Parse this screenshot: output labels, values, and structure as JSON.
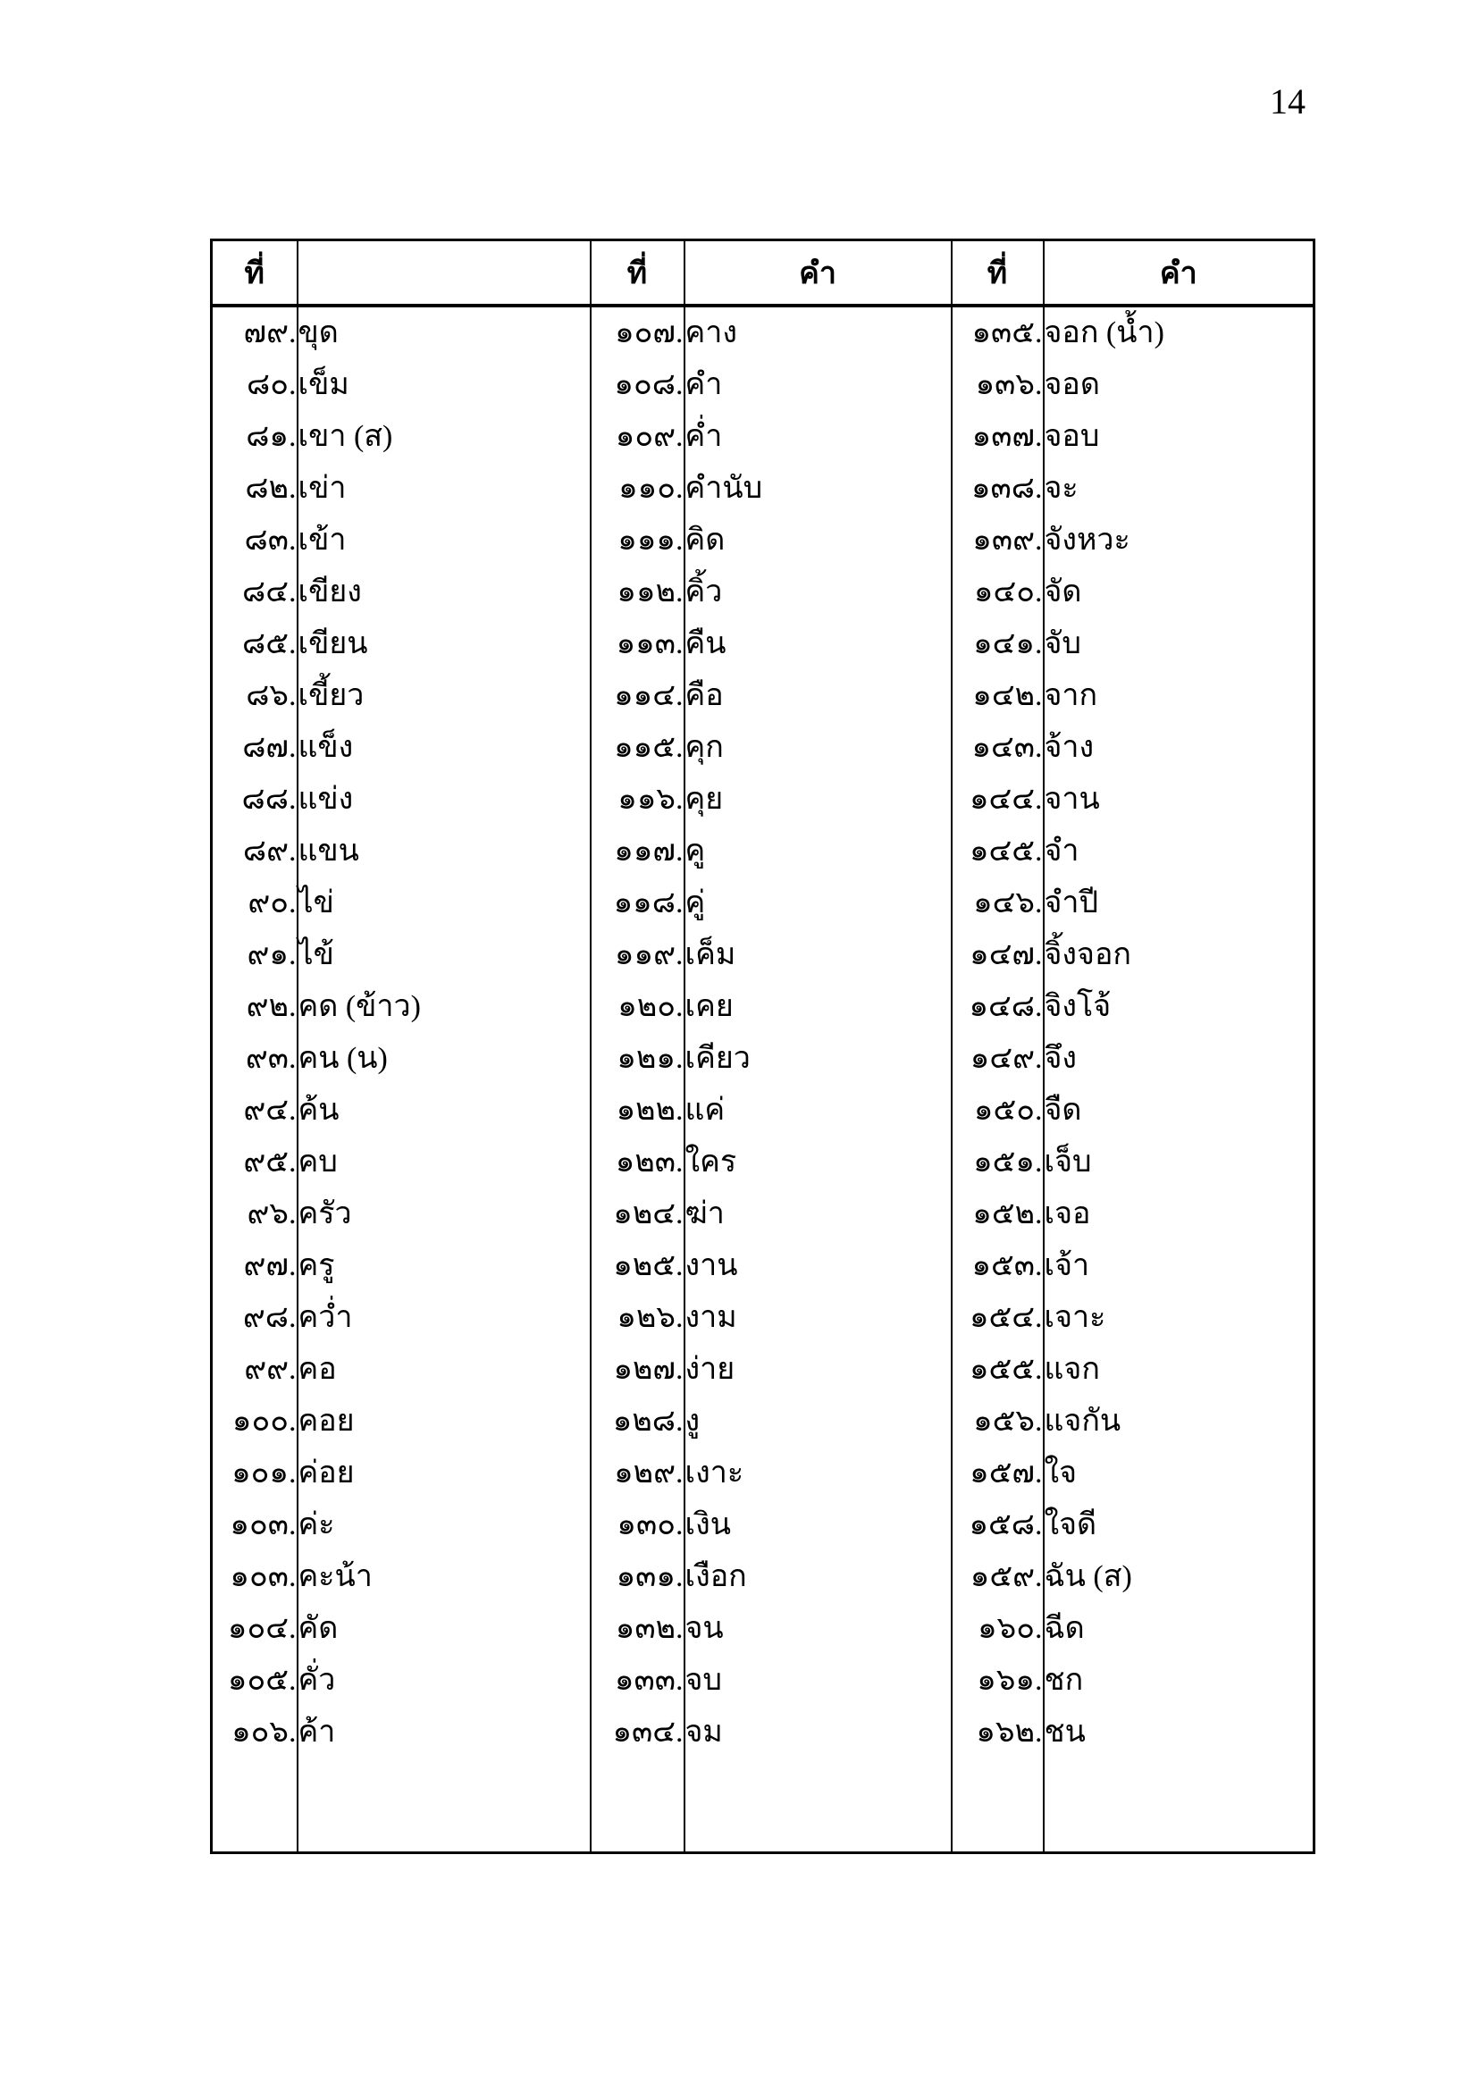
{
  "page": {
    "number": "14"
  },
  "table": {
    "headers": [
      "ที่",
      "",
      "ที่",
      "คำ",
      "ที่",
      "คำ"
    ],
    "rows": [
      [
        "๗๙.",
        "ขุด",
        "๑๐๗.",
        "คาง",
        "๑๓๕.",
        "จอก (น้ำ)"
      ],
      [
        "๘๐.",
        "เข็ม",
        "๑๐๘.",
        "คำ",
        "๑๓๖.",
        "จอด"
      ],
      [
        "๘๑.",
        "เขา (ส)",
        "๑๐๙.",
        "ค่ำ",
        "๑๓๗.",
        "จอบ"
      ],
      [
        "๘๒.",
        "เข่า",
        "๑๑๐.",
        "คำนับ",
        "๑๓๘.",
        "จะ"
      ],
      [
        "๘๓.",
        "เข้า",
        "๑๑๑.",
        "คิด",
        "๑๓๙.",
        "จังหวะ"
      ],
      [
        "๘๔.",
        "เขียง",
        "๑๑๒.",
        "คิ้ว",
        "๑๔๐.",
        "จัด"
      ],
      [
        "๘๕.",
        "เขียน",
        "๑๑๓.",
        "คืน",
        "๑๔๑.",
        "จับ"
      ],
      [
        "๘๖.",
        "เขี้ยว",
        "๑๑๔.",
        "คือ",
        "๑๔๒.",
        "จาก"
      ],
      [
        "๘๗.",
        "แข็ง",
        "๑๑๕.",
        "คุก",
        "๑๔๓.",
        "จ้าง"
      ],
      [
        "๘๘.",
        "แข่ง",
        "๑๑๖.",
        "คุย",
        "๑๔๔.",
        "จาน"
      ],
      [
        "๘๙.",
        "แขน",
        "๑๑๗.",
        "คู",
        "๑๔๕.",
        "จำ"
      ],
      [
        "๙๐.",
        "ไข่",
        "๑๑๘.",
        "คู่",
        "๑๔๖.",
        "จำปี"
      ],
      [
        "๙๑.",
        "ไข้",
        "๑๑๙.",
        "เค็ม",
        "๑๔๗.",
        "จิ้งจอก"
      ],
      [
        "๙๒.",
        "คด (ข้าว)",
        "๑๒๐.",
        "เคย",
        "๑๔๘.",
        "จิงโจ้"
      ],
      [
        "๙๓.",
        "คน (น)",
        "๑๒๑.",
        "เคียว",
        "๑๔๙.",
        "จึง"
      ],
      [
        "๙๔.",
        "ค้น",
        "๑๒๒.",
        "แค่",
        "๑๕๐.",
        "จืด"
      ],
      [
        "๙๕.",
        "คบ",
        "๑๒๓.",
        "ใคร",
        "๑๕๑.",
        "เจ็บ"
      ],
      [
        "๙๖.",
        "ครัว",
        "๑๒๔.",
        "ฆ่า",
        "๑๕๒.",
        "เจอ"
      ],
      [
        "๙๗.",
        "ครู",
        "๑๒๕.",
        "งาน",
        "๑๕๓.",
        "เจ้า"
      ],
      [
        "๙๘.",
        "คว่ำ",
        "๑๒๖.",
        "งาม",
        "๑๕๔.",
        "เจาะ"
      ],
      [
        "๙๙.",
        "คอ",
        "๑๒๗.",
        "ง่าย",
        "๑๕๕.",
        "แจก"
      ],
      [
        "๑๐๐.",
        "คอย",
        "๑๒๘.",
        "งู",
        "๑๕๖.",
        "แจกัน"
      ],
      [
        "๑๐๑.",
        "ค่อย",
        "๑๒๙.",
        "เงาะ",
        "๑๕๗.",
        "ใจ"
      ],
      [
        "๑๐๓.",
        "ค่ะ",
        "๑๓๐.",
        "เงิน",
        "๑๕๘.",
        "ใจดี"
      ],
      [
        "๑๐๓.",
        "คะน้า",
        "๑๓๑.",
        "เงือก",
        "๑๕๙.",
        "ฉัน (ส)"
      ],
      [
        "๑๐๔.",
        "คัด",
        "๑๓๒.",
        "จน",
        "๑๖๐.",
        "ฉีด"
      ],
      [
        "๑๐๕.",
        "คั่ว",
        "๑๓๓.",
        "จบ",
        "๑๖๑.",
        "ชก"
      ],
      [
        "๑๐๖.",
        "ค้า",
        "๑๓๔.",
        "จม",
        "๑๖๒.",
        "ชน"
      ]
    ]
  }
}
